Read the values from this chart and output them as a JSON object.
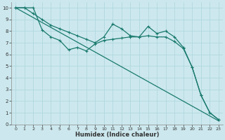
{
  "xlabel": "Humidex (Indice chaleur)",
  "bg_color": "#cce8ee",
  "line_color": "#1a7a6e",
  "grid_color": "#b0d8de",
  "xlim": [
    -0.5,
    23.5
  ],
  "ylim": [
    0,
    10.5
  ],
  "yticks": [
    0,
    1,
    2,
    3,
    4,
    5,
    6,
    7,
    8,
    9,
    10
  ],
  "xticks": [
    0,
    1,
    2,
    3,
    4,
    5,
    6,
    7,
    8,
    9,
    10,
    11,
    12,
    13,
    14,
    15,
    16,
    17,
    18,
    19,
    20,
    21,
    22,
    23
  ],
  "line1": {
    "x": [
      0,
      23
    ],
    "y": [
      10,
      0.3
    ],
    "markers": false
  },
  "line2": {
    "x": [
      0,
      1,
      2,
      3,
      4,
      5,
      6,
      7,
      8,
      9,
      10,
      11,
      12,
      13,
      14,
      15,
      16,
      17,
      18,
      19,
      20,
      21,
      22,
      23
    ],
    "y": [
      10,
      10,
      9.5,
      9.0,
      8.5,
      8.2,
      7.9,
      7.6,
      7.3,
      7.0,
      7.5,
      8.6,
      8.2,
      7.6,
      7.5,
      8.4,
      7.8,
      8.0,
      7.5,
      6.6,
      4.9,
      2.5,
      1.0,
      0.4
    ],
    "markers": true
  },
  "line3": {
    "x": [
      0,
      1,
      2,
      3,
      4,
      5,
      6,
      7,
      8,
      9,
      10,
      11,
      12,
      13,
      14,
      15,
      16,
      17,
      18,
      19,
      20,
      21,
      22,
      23
    ],
    "y": [
      10,
      10,
      10,
      8.1,
      7.5,
      7.2,
      6.4,
      6.6,
      6.3,
      6.9,
      7.2,
      7.3,
      7.4,
      7.5,
      7.5,
      7.6,
      7.5,
      7.5,
      7.1,
      6.5,
      4.9,
      2.5,
      1.0,
      0.4
    ],
    "markers": true
  }
}
